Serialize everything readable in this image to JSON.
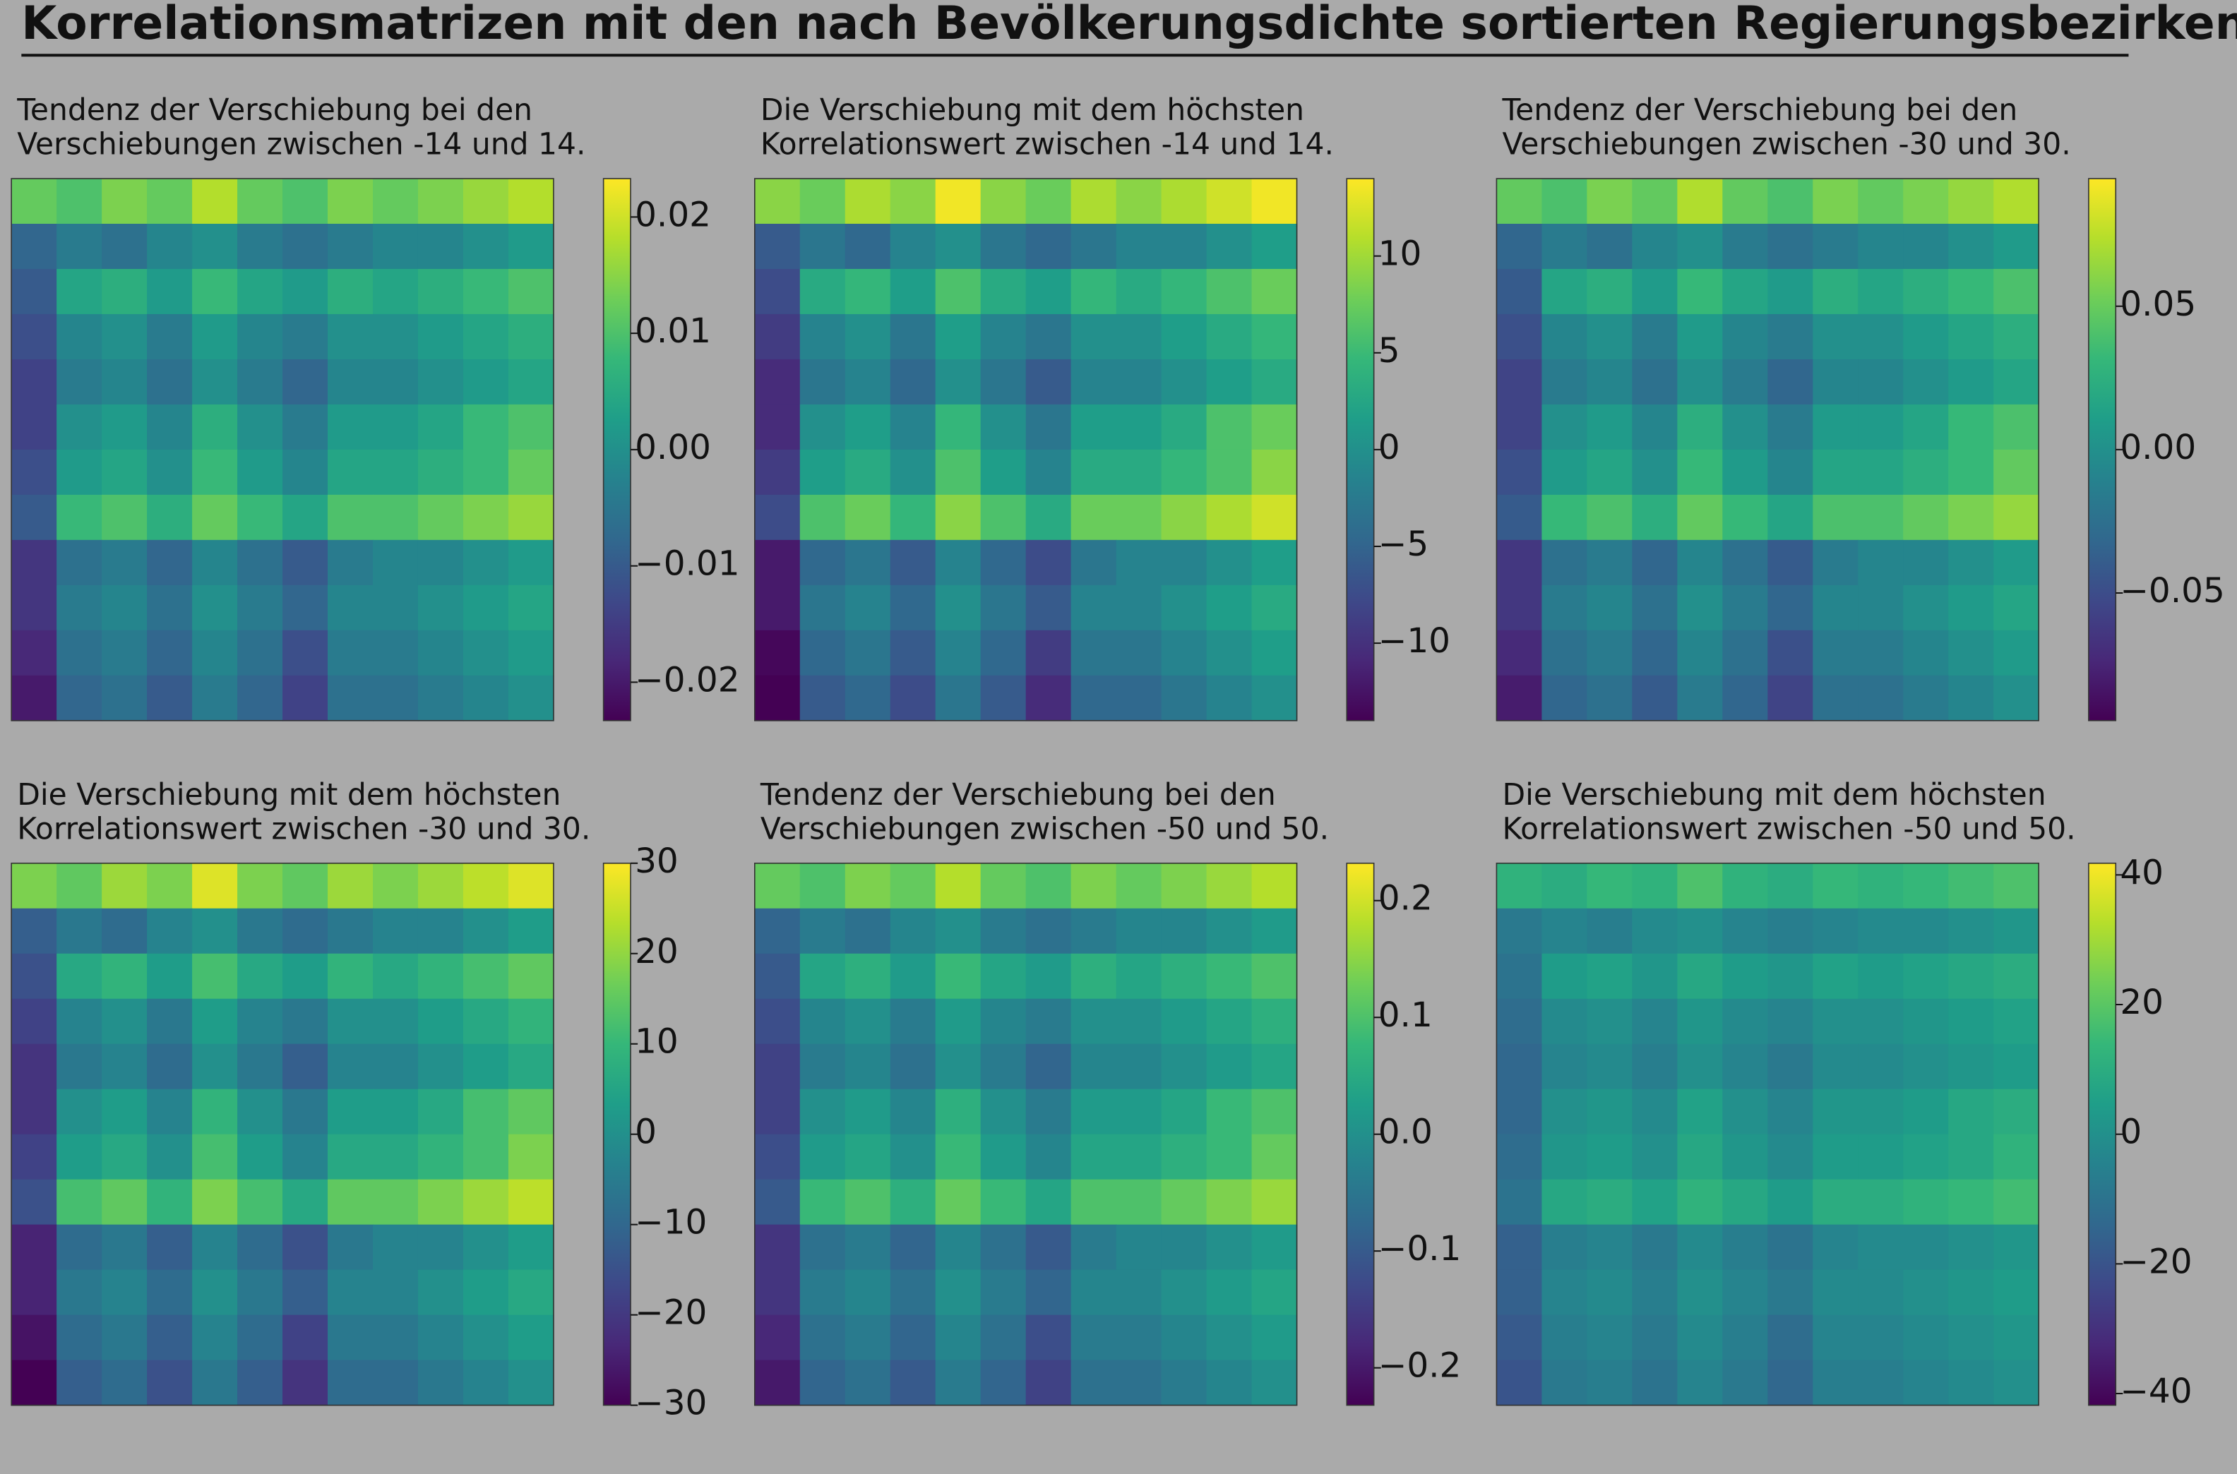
{
  "title": "Korrelationsmatrizen mit den nach Bevölkerungsdichte sortierten Regierungsbezirken",
  "chart_data": [
    {
      "type": "heatmap",
      "title": [
        "Tendenz der Verschiebung bei den",
        "Verschiebungen zwischen -14 und 14."
      ],
      "colormap": "viridis",
      "zlim": [
        -0.0233,
        0.0233
      ],
      "zticks": [
        {
          "value": -0.02,
          "label": "−0.02"
        },
        {
          "value": -0.01,
          "label": "−0.01"
        },
        {
          "value": 0,
          "label": "0.00"
        },
        0.01,
        0.02
      ],
      "z": [
        [
          0.012,
          0.01,
          0.014,
          0.012,
          0.018,
          0.012,
          0.01,
          0.014,
          0.012,
          0.014,
          0.016,
          0.018
        ],
        [
          -0.008,
          -0.004,
          -0.006,
          -0.002,
          0,
          -0.004,
          -0.006,
          -0.004,
          -0.002,
          -0.002,
          0,
          0.002
        ],
        [
          -0.01,
          0.004,
          0.006,
          0.002,
          0.008,
          0.004,
          0.002,
          0.006,
          0.004,
          0.006,
          0.008,
          0.01
        ],
        [
          -0.012,
          -0.002,
          0,
          -0.004,
          0.002,
          -0.002,
          -0.004,
          0,
          0,
          0.002,
          0.004,
          0.006
        ],
        [
          -0.014,
          -0.004,
          -0.002,
          -0.006,
          0,
          -0.004,
          -0.008,
          -0.002,
          -0.002,
          0,
          0.002,
          0.004
        ],
        [
          -0.014,
          0,
          0.002,
          -0.002,
          0.006,
          0,
          -0.004,
          0.002,
          0.002,
          0.004,
          0.008,
          0.01
        ],
        [
          -0.012,
          0.002,
          0.004,
          0,
          0.008,
          0.002,
          -0.002,
          0.004,
          0.004,
          0.006,
          0.008,
          0.012
        ],
        [
          -0.01,
          0.008,
          0.01,
          0.006,
          0.012,
          0.008,
          0.004,
          0.01,
          0.01,
          0.012,
          0.014,
          0.016
        ],
        [
          -0.016,
          -0.006,
          -0.004,
          -0.008,
          -0.002,
          -0.006,
          -0.01,
          -0.004,
          -0.002,
          -0.002,
          0,
          0.002
        ],
        [
          -0.016,
          -0.004,
          -0.002,
          -0.006,
          0,
          -0.004,
          -0.008,
          -0.002,
          -0.002,
          0,
          0.002,
          0.004
        ],
        [
          -0.018,
          -0.006,
          -0.004,
          -0.008,
          -0.002,
          -0.006,
          -0.012,
          -0.004,
          -0.004,
          -0.002,
          0,
          0.002
        ],
        [
          -0.02,
          -0.008,
          -0.006,
          -0.01,
          -0.004,
          -0.008,
          -0.014,
          -0.006,
          -0.006,
          -0.004,
          -0.002,
          0
        ]
      ]
    },
    {
      "type": "heatmap",
      "title": [
        "Die Verschiebung mit dem höchsten",
        "Korrelationswert zwischen -14 und 14."
      ],
      "colormap": "viridis",
      "zlim": [
        -14,
        14
      ],
      "zticks": [
        {
          "value": -10,
          "label": "−10"
        },
        {
          "value": -5,
          "label": "−5"
        },
        0,
        5,
        10
      ],
      "z": [
        [
          9,
          7.5,
          10.5,
          9,
          13.5,
          9,
          7.5,
          10.5,
          9,
          10.5,
          12,
          13.5
        ],
        [
          -6,
          -3,
          -4.5,
          -1.5,
          0,
          -3,
          -4.5,
          -3,
          -1.5,
          -1.5,
          0,
          1.5
        ],
        [
          -7.5,
          3,
          4.5,
          1.5,
          6,
          3,
          1.5,
          4.5,
          3,
          4.5,
          6,
          7.5
        ],
        [
          -9,
          -1.5,
          0,
          -3,
          1.5,
          -1.5,
          -3,
          0,
          0,
          1.5,
          3,
          4.5
        ],
        [
          -10.5,
          -3,
          -1.5,
          -4.5,
          0,
          -3,
          -6,
          -1.5,
          -1.5,
          0,
          1.5,
          3
        ],
        [
          -10.5,
          0,
          1.5,
          -1.5,
          4.5,
          0,
          -3,
          1.5,
          1.5,
          3,
          6,
          7.5
        ],
        [
          -9,
          1.5,
          3,
          0,
          6,
          1.5,
          -1.5,
          3,
          3,
          4.5,
          6,
          9
        ],
        [
          -7.5,
          6,
          7.5,
          4.5,
          9,
          6,
          3,
          7.5,
          7.5,
          9,
          10.5,
          12
        ],
        [
          -12,
          -4.5,
          -3,
          -6,
          -1.5,
          -4.5,
          -7.5,
          -3,
          -1.5,
          -1.5,
          0,
          1.5
        ],
        [
          -12,
          -3,
          -1.5,
          -4.5,
          0,
          -3,
          -6,
          -1.5,
          -1.5,
          0,
          1.5,
          3
        ],
        [
          -13.5,
          -4.5,
          -3,
          -6,
          -1.5,
          -4.5,
          -9,
          -3,
          -3,
          -1.5,
          0,
          1.5
        ],
        [
          -14,
          -6,
          -4.5,
          -7.5,
          -3,
          -6,
          -10.5,
          -4.5,
          -4.5,
          -3,
          -1.5,
          0
        ]
      ]
    },
    {
      "type": "heatmap",
      "title": [
        "Tendenz der Verschiebung bei den",
        "Verschiebungen zwischen -30 und 30."
      ],
      "colormap": "viridis",
      "zlim": [
        -0.0945,
        0.0945
      ],
      "zticks": [
        {
          "value": -0.05,
          "label": "−0.05"
        },
        {
          "value": 0,
          "label": "0.00"
        },
        0.05
      ],
      "z": [
        [
          0.048,
          0.04,
          0.056,
          0.048,
          0.072,
          0.048,
          0.04,
          0.056,
          0.048,
          0.056,
          0.064,
          0.072
        ],
        [
          -0.032,
          -0.016,
          -0.024,
          -0.008,
          0,
          -0.016,
          -0.024,
          -0.016,
          -0.008,
          -0.008,
          0,
          0.008
        ],
        [
          -0.04,
          0.016,
          0.024,
          0.008,
          0.032,
          0.016,
          0.008,
          0.024,
          0.016,
          0.024,
          0.032,
          0.04
        ],
        [
          -0.048,
          -0.008,
          0,
          -0.016,
          0.008,
          -0.008,
          -0.016,
          0,
          0,
          0.008,
          0.016,
          0.024
        ],
        [
          -0.056,
          -0.016,
          -0.008,
          -0.024,
          0,
          -0.016,
          -0.032,
          -0.008,
          -0.008,
          0,
          0.008,
          0.016
        ],
        [
          -0.056,
          0,
          0.008,
          -0.008,
          0.024,
          0,
          -0.016,
          0.008,
          0.008,
          0.016,
          0.032,
          0.04
        ],
        [
          -0.048,
          0.008,
          0.016,
          0,
          0.032,
          0.008,
          -0.008,
          0.016,
          0.016,
          0.024,
          0.032,
          0.048
        ],
        [
          -0.04,
          0.032,
          0.04,
          0.024,
          0.048,
          0.032,
          0.016,
          0.04,
          0.04,
          0.048,
          0.056,
          0.064
        ],
        [
          -0.064,
          -0.024,
          -0.016,
          -0.032,
          -0.008,
          -0.024,
          -0.04,
          -0.016,
          -0.008,
          -0.008,
          0,
          0.008
        ],
        [
          -0.064,
          -0.016,
          -0.008,
          -0.024,
          0,
          -0.016,
          -0.032,
          -0.008,
          -0.008,
          0,
          0.008,
          0.016
        ],
        [
          -0.072,
          -0.024,
          -0.016,
          -0.032,
          -0.008,
          -0.024,
          -0.048,
          -0.016,
          -0.016,
          -0.008,
          0,
          0.008
        ],
        [
          -0.08,
          -0.032,
          -0.024,
          -0.04,
          -0.016,
          -0.032,
          -0.056,
          -0.024,
          -0.024,
          -0.016,
          -0.008,
          0
        ]
      ]
    },
    {
      "type": "heatmap",
      "title": [
        "Die Verschiebung mit dem höchsten",
        "Korrelationswert zwischen -30 und 30."
      ],
      "colormap": "viridis",
      "zlim": [
        -30,
        30
      ],
      "zticks": [
        {
          "value": -30,
          "label": "−30"
        },
        {
          "value": -20,
          "label": "−20"
        },
        {
          "value": -10,
          "label": "−10"
        },
        0,
        10,
        20,
        30
      ],
      "z": [
        [
          18,
          15,
          21,
          18,
          27,
          18,
          15,
          21,
          18,
          21,
          24,
          27
        ],
        [
          -12,
          -6,
          -9,
          -3,
          0,
          -6,
          -9,
          -6,
          -3,
          -3,
          0,
          3
        ],
        [
          -15,
          6,
          9,
          3,
          12,
          6,
          3,
          9,
          6,
          9,
          12,
          15
        ],
        [
          -18,
          -3,
          0,
          -6,
          3,
          -3,
          -6,
          0,
          0,
          3,
          6,
          9
        ],
        [
          -21,
          -6,
          -3,
          -9,
          0,
          -6,
          -12,
          -3,
          -3,
          0,
          3,
          6
        ],
        [
          -21,
          0,
          3,
          -3,
          9,
          0,
          -6,
          3,
          3,
          6,
          12,
          15
        ],
        [
          -18,
          3,
          6,
          0,
          12,
          3,
          -3,
          6,
          6,
          9,
          12,
          18
        ],
        [
          -15,
          12,
          15,
          9,
          18,
          12,
          6,
          15,
          15,
          18,
          21,
          24
        ],
        [
          -24,
          -9,
          -6,
          -12,
          -3,
          -9,
          -15,
          -6,
          -3,
          -3,
          0,
          3
        ],
        [
          -24,
          -6,
          -3,
          -9,
          0,
          -6,
          -12,
          -3,
          -3,
          0,
          3,
          6
        ],
        [
          -27,
          -9,
          -6,
          -12,
          -3,
          -9,
          -18,
          -6,
          -6,
          -3,
          0,
          3
        ],
        [
          -30,
          -12,
          -9,
          -15,
          -6,
          -12,
          -21,
          -9,
          -9,
          -6,
          -3,
          0
        ]
      ]
    },
    {
      "type": "heatmap",
      "title": [
        "Tendenz der Verschiebung bei den",
        "Verschiebungen zwischen -50 und 50."
      ],
      "colormap": "viridis",
      "zlim": [
        -0.232,
        0.232
      ],
      "zticks": [
        {
          "value": -0.2,
          "label": "−0.2"
        },
        {
          "value": -0.1,
          "label": "−0.1"
        },
        {
          "value": 0,
          "label": "0.0"
        },
        0.1,
        0.2
      ],
      "z": [
        [
          0.12,
          0.1,
          0.14,
          0.12,
          0.18,
          0.12,
          0.1,
          0.14,
          0.12,
          0.14,
          0.16,
          0.18
        ],
        [
          -0.08,
          -0.04,
          -0.06,
          -0.02,
          0,
          -0.04,
          -0.06,
          -0.04,
          -0.02,
          -0.02,
          0,
          0.02
        ],
        [
          -0.1,
          0.04,
          0.06,
          0.02,
          0.08,
          0.04,
          0.02,
          0.06,
          0.04,
          0.06,
          0.08,
          0.1
        ],
        [
          -0.12,
          -0.02,
          0,
          -0.04,
          0.02,
          -0.02,
          -0.04,
          0,
          0,
          0.02,
          0.04,
          0.06
        ],
        [
          -0.14,
          -0.04,
          -0.02,
          -0.06,
          0,
          -0.04,
          -0.08,
          -0.02,
          -0.02,
          0,
          0.02,
          0.04
        ],
        [
          -0.14,
          0,
          0.02,
          -0.02,
          0.06,
          0,
          -0.04,
          0.02,
          0.02,
          0.04,
          0.08,
          0.1
        ],
        [
          -0.12,
          0.02,
          0.04,
          0,
          0.08,
          0.02,
          -0.02,
          0.04,
          0.04,
          0.06,
          0.08,
          0.12
        ],
        [
          -0.1,
          0.08,
          0.1,
          0.06,
          0.12,
          0.08,
          0.04,
          0.1,
          0.1,
          0.12,
          0.14,
          0.16
        ],
        [
          -0.16,
          -0.06,
          -0.04,
          -0.08,
          -0.02,
          -0.06,
          -0.1,
          -0.04,
          -0.02,
          -0.02,
          0,
          0.02
        ],
        [
          -0.16,
          -0.04,
          -0.02,
          -0.06,
          0,
          -0.04,
          -0.08,
          -0.02,
          -0.02,
          0,
          0.02,
          0.04
        ],
        [
          -0.18,
          -0.06,
          -0.04,
          -0.08,
          -0.02,
          -0.06,
          -0.12,
          -0.04,
          -0.04,
          -0.02,
          0,
          0.02
        ],
        [
          -0.2,
          -0.08,
          -0.06,
          -0.1,
          -0.04,
          -0.08,
          -0.14,
          -0.06,
          -0.06,
          -0.04,
          -0.02,
          0
        ]
      ]
    },
    {
      "type": "heatmap",
      "title": [
        "Die Verschiebung mit dem höchsten",
        "Korrelationswert zwischen -50 und 50."
      ],
      "colormap": "viridis",
      "zlim": [
        -41.8,
        41.8
      ],
      "zticks": [
        {
          "value": -40,
          "label": "−40"
        },
        {
          "value": -20,
          "label": "−20"
        },
        0,
        20,
        40
      ],
      "z": [
        [
          12,
          10,
          14,
          12,
          18,
          12,
          10,
          14,
          12,
          14,
          16,
          18
        ],
        [
          -8,
          -4,
          -6,
          -2,
          0,
          -4,
          -6,
          -4,
          -2,
          -2,
          0,
          2
        ],
        [
          -10,
          4,
          6,
          2,
          8,
          4,
          2,
          6,
          4,
          6,
          8,
          10
        ],
        [
          -12,
          -2,
          0,
          -4,
          2,
          -2,
          -4,
          0,
          0,
          2,
          4,
          6
        ],
        [
          -14,
          -4,
          -2,
          -6,
          0,
          -4,
          -8,
          -2,
          -2,
          0,
          2,
          4
        ],
        [
          -14,
          0,
          2,
          -2,
          6,
          0,
          -4,
          2,
          2,
          4,
          8,
          10
        ],
        [
          -12,
          2,
          4,
          0,
          8,
          2,
          -2,
          4,
          4,
          6,
          8,
          12
        ],
        [
          -10,
          8,
          10,
          6,
          12,
          8,
          4,
          10,
          10,
          12,
          14,
          16
        ],
        [
          -16,
          -6,
          -4,
          -8,
          -2,
          -6,
          -10,
          -4,
          -2,
          -2,
          0,
          2
        ],
        [
          -16,
          -4,
          -2,
          -6,
          0,
          -4,
          -8,
          -2,
          -2,
          0,
          2,
          4
        ],
        [
          -18,
          -6,
          -4,
          -8,
          -2,
          -6,
          -12,
          -4,
          -4,
          -2,
          0,
          2
        ],
        [
          -20,
          -8,
          -6,
          -10,
          -4,
          -8,
          -14,
          -6,
          -6,
          -4,
          -2,
          0
        ]
      ]
    }
  ]
}
